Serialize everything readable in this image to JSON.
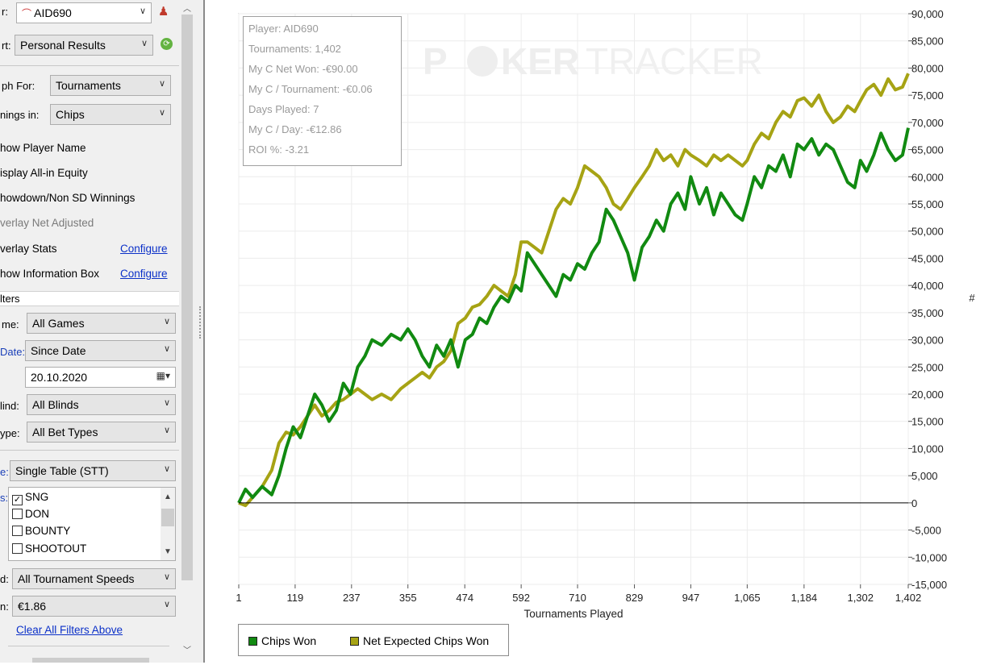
{
  "sidebar": {
    "player_label": "r:",
    "player_value": "AID690",
    "report_label": "rt:",
    "report_value": "Personal Results",
    "graph_for_label": "ph For:",
    "graph_for_value": "Tournaments",
    "winnings_label": "nings in:",
    "winnings_value": "Chips",
    "options": [
      {
        "label": "how Player Name",
        "gray": false
      },
      {
        "label": "isplay All-in Equity",
        "gray": false
      },
      {
        "label": "howdown/Non SD Winnings",
        "gray": false
      },
      {
        "label": "verlay Net Adjusted",
        "gray": true
      },
      {
        "label": "verlay Stats",
        "gray": false
      },
      {
        "label": "how Information Box",
        "gray": false
      }
    ],
    "configure_link": "Configure",
    "filters_header": "lters",
    "filters": [
      {
        "label": "me:",
        "value": "All Games",
        "blue": false
      },
      {
        "label": "Date:",
        "value": "Since Date",
        "blue": true
      },
      {
        "label": "",
        "value": "20.10.2020",
        "blue": false
      },
      {
        "label": "lind:",
        "value": "All Blinds",
        "blue": false
      },
      {
        "label": "ype:",
        "value": "All Bet Types",
        "blue": false
      },
      {
        "label": "e:",
        "value": "Single Table (STT)",
        "blue": true
      }
    ],
    "types_label": "s:",
    "types": [
      {
        "label": "SNG",
        "checked": true
      },
      {
        "label": "DON",
        "checked": false
      },
      {
        "label": "BOUNTY",
        "checked": false
      },
      {
        "label": "SHOOTOUT",
        "checked": false
      }
    ],
    "speed_label": "d:",
    "speed_value": "All Tournament Speeds",
    "buyin_label": "n:",
    "buyin_value": "€1.86",
    "clear_filters": "Clear All Filters Above"
  },
  "info_box": [
    "Player: AID690",
    "Tournaments: 1,402",
    "My C Net Won: -€90.00",
    "My C / Tournament: -€0.06",
    "Days Played: 7",
    "My C / Day: -€12.86",
    "ROI %: -3.21"
  ],
  "watermark": {
    "part1": "P",
    "part2": "KER",
    "part3": "TRACKER"
  },
  "colors": {
    "chips_won": "#118a11",
    "net_expected": "#a6a314",
    "link": "#0b30c8"
  },
  "chart_data": {
    "type": "line",
    "xlabel": "Tournaments Played",
    "ylabel": "#",
    "x_ticks": [
      "1",
      "119",
      "237",
      "355",
      "474",
      "592",
      "710",
      "829",
      "947",
      "1,065",
      "1,184",
      "1,302",
      "1,402"
    ],
    "y_ticks": [
      "90,000",
      "85,000",
      "80,000",
      "75,000",
      "70,000",
      "65,000",
      "60,000",
      "55,000",
      "50,000",
      "45,000",
      "40,000",
      "35,000",
      "30,000",
      "25,000",
      "20,000",
      "15,000",
      "10,000",
      "5,000",
      "0",
      "-5,000",
      "-10,000",
      "-15,000"
    ],
    "xlim": [
      1,
      1402
    ],
    "ylim": [
      -15000,
      90000
    ],
    "grid": true,
    "legend_position": "bottom-left",
    "series": [
      {
        "name": "Chips Won",
        "x": [
          1,
          15,
          30,
          50,
          70,
          85,
          100,
          115,
          130,
          145,
          160,
          175,
          190,
          205,
          220,
          235,
          250,
          265,
          280,
          300,
          320,
          340,
          355,
          370,
          385,
          400,
          415,
          430,
          445,
          460,
          475,
          490,
          505,
          520,
          535,
          550,
          565,
          580,
          592,
          605,
          620,
          635,
          650,
          665,
          680,
          695,
          710,
          725,
          740,
          755,
          770,
          785,
          800,
          815,
          829,
          845,
          860,
          875,
          890,
          905,
          920,
          935,
          947,
          965,
          980,
          995,
          1010,
          1025,
          1040,
          1055,
          1065,
          1080,
          1095,
          1110,
          1125,
          1140,
          1155,
          1170,
          1184,
          1200,
          1215,
          1230,
          1245,
          1260,
          1275,
          1290,
          1302,
          1315,
          1330,
          1345,
          1360,
          1375,
          1390,
          1402
        ],
        "values": [
          0,
          2500,
          1000,
          3000,
          1500,
          5000,
          10000,
          14000,
          12000,
          16000,
          20000,
          18000,
          15000,
          17000,
          22000,
          20000,
          25000,
          27000,
          30000,
          29000,
          31000,
          30000,
          32000,
          30000,
          27000,
          25000,
          29000,
          27000,
          30000,
          25000,
          30000,
          31000,
          34000,
          33000,
          36000,
          38000,
          37000,
          40000,
          39000,
          46000,
          44000,
          42000,
          40000,
          38000,
          42000,
          41000,
          44000,
          43000,
          46000,
          48000,
          54000,
          52000,
          49000,
          46000,
          41000,
          47000,
          49000,
          52000,
          50000,
          55000,
          57000,
          54000,
          60000,
          55000,
          58000,
          53000,
          57000,
          55000,
          53000,
          52000,
          55000,
          60000,
          58000,
          62000,
          61000,
          64000,
          60000,
          66000,
          65000,
          67000,
          64000,
          66000,
          65000,
          62000,
          59000,
          58000,
          63000,
          61000,
          64000,
          68000,
          65000,
          63000,
          64000,
          69000
        ]
      },
      {
        "name": "Net Expected Chips Won",
        "x": [
          1,
          15,
          30,
          50,
          70,
          85,
          100,
          115,
          130,
          145,
          160,
          175,
          190,
          205,
          220,
          235,
          250,
          265,
          280,
          300,
          320,
          340,
          355,
          370,
          385,
          400,
          415,
          430,
          445,
          460,
          475,
          490,
          505,
          520,
          535,
          550,
          565,
          580,
          592,
          605,
          620,
          635,
          650,
          665,
          680,
          695,
          710,
          725,
          740,
          755,
          770,
          785,
          800,
          815,
          829,
          845,
          860,
          875,
          890,
          905,
          920,
          935,
          947,
          965,
          980,
          995,
          1010,
          1025,
          1040,
          1055,
          1065,
          1080,
          1095,
          1110,
          1125,
          1140,
          1155,
          1170,
          1184,
          1200,
          1215,
          1230,
          1245,
          1260,
          1275,
          1290,
          1302,
          1315,
          1330,
          1345,
          1360,
          1375,
          1390,
          1402
        ],
        "values": [
          0,
          -500,
          1000,
          3000,
          6000,
          11000,
          13000,
          12500,
          14000,
          16000,
          18000,
          16000,
          17000,
          18500,
          19000,
          20000,
          21000,
          20000,
          19000,
          20000,
          19000,
          21000,
          22000,
          23000,
          24000,
          23000,
          25000,
          26000,
          28000,
          33000,
          34000,
          36000,
          36500,
          38000,
          40000,
          39000,
          38000,
          42000,
          48000,
          48000,
          47000,
          46000,
          50000,
          54000,
          56000,
          55000,
          58000,
          62000,
          61000,
          60000,
          58000,
          55000,
          54000,
          56000,
          58000,
          60000,
          62000,
          65000,
          63000,
          64000,
          62000,
          65000,
          64000,
          63000,
          62000,
          64000,
          63000,
          64000,
          63000,
          62000,
          63000,
          66000,
          68000,
          67000,
          70000,
          72000,
          71000,
          74000,
          74500,
          73000,
          75000,
          72000,
          70000,
          71000,
          73000,
          72000,
          74000,
          76000,
          77000,
          75000,
          78000,
          76000,
          76500,
          79000
        ]
      }
    ]
  }
}
